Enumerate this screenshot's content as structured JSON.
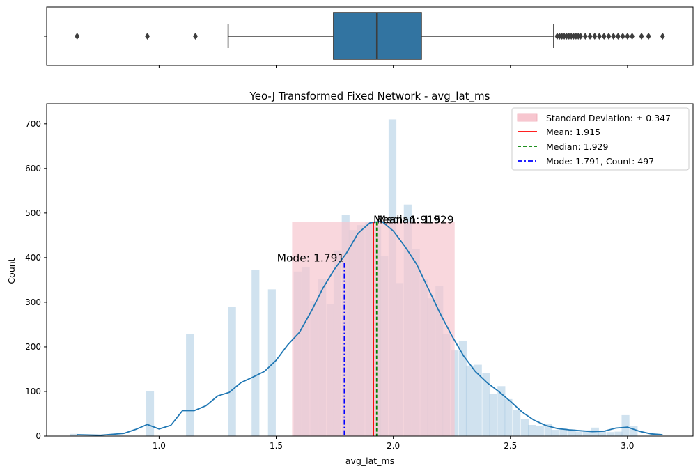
{
  "chart_data": [
    {
      "type": "box",
      "orientation": "horizontal",
      "box": {
        "q1": 1.745,
        "median": 1.929,
        "q3": 2.12,
        "whisker_low": 1.295,
        "whisker_high": 2.685
      },
      "outliers": [
        0.65,
        0.95,
        1.155,
        2.7,
        2.71,
        2.72,
        2.73,
        2.74,
        2.75,
        2.76,
        2.77,
        2.78,
        2.79,
        2.8,
        2.82,
        2.84,
        2.86,
        2.88,
        2.9,
        2.92,
        2.94,
        2.96,
        2.98,
        3.0,
        3.02,
        3.06,
        3.09,
        3.15
      ],
      "xlim": [
        0.52,
        3.28
      ],
      "x_ticks": [
        1.0,
        1.5,
        2.0,
        2.5,
        3.0
      ],
      "y_tick_labels": [
        ""
      ]
    },
    {
      "type": "bar",
      "title": "Yeo-J Transformed Fixed Network - avg_lat_ms",
      "xlabel": "avg_lat_ms",
      "ylabel": "Count",
      "xlim": [
        0.52,
        3.28
      ],
      "ylim": [
        0,
        745
      ],
      "x_ticks": [
        1.0,
        1.5,
        2.0,
        2.5,
        3.0
      ],
      "x_tick_labels": [
        "1.0",
        "1.5",
        "2.0",
        "2.5",
        "3.0"
      ],
      "y_ticks": [
        0,
        100,
        200,
        300,
        400,
        500,
        600,
        700
      ],
      "y_tick_labels": [
        "0",
        "100",
        "200",
        "300",
        "400",
        "500",
        "600",
        "700"
      ],
      "bin_width": 0.0333,
      "bins_left": [
        0.62,
        0.945,
        1.115,
        1.295,
        1.395,
        1.465,
        1.575,
        1.61,
        1.645,
        1.68,
        1.715,
        1.745,
        1.78,
        1.81,
        1.845,
        1.88,
        1.915,
        1.945,
        1.98,
        2.01,
        2.045,
        2.08,
        2.115,
        2.145,
        2.18,
        2.21,
        2.245,
        2.28,
        2.31,
        2.345,
        2.38,
        2.41,
        2.445,
        2.475,
        2.51,
        2.545,
        2.575,
        2.61,
        2.645,
        2.675,
        2.71,
        2.745,
        2.775,
        2.81,
        2.845,
        2.875,
        2.91,
        2.945,
        2.975,
        3.01
      ],
      "counts": [
        5,
        100,
        228,
        290,
        372,
        329,
        369,
        378,
        303,
        353,
        296,
        416,
        496,
        462,
        473,
        479,
        470,
        403,
        710,
        343,
        519,
        420,
        351,
        309,
        337,
        228,
        192,
        214,
        158,
        160,
        142,
        94,
        112,
        83,
        58,
        38,
        25,
        22,
        28,
        14,
        18,
        15,
        10,
        13,
        19,
        12,
        9,
        10,
        47,
        22
      ],
      "kde": {
        "x": [
          0.65,
          0.75,
          0.85,
          0.9,
          0.95,
          1.0,
          1.05,
          1.1,
          1.15,
          1.2,
          1.25,
          1.3,
          1.35,
          1.4,
          1.45,
          1.5,
          1.55,
          1.6,
          1.65,
          1.7,
          1.75,
          1.8,
          1.85,
          1.9,
          1.95,
          2.0,
          2.05,
          2.1,
          2.15,
          2.2,
          2.25,
          2.3,
          2.35,
          2.4,
          2.45,
          2.5,
          2.55,
          2.6,
          2.65,
          2.7,
          2.75,
          2.8,
          2.85,
          2.9,
          2.95,
          3.0,
          3.05,
          3.1,
          3.15
        ],
        "y": [
          3,
          2,
          6,
          15,
          26,
          16,
          24,
          57,
          57,
          68,
          90,
          98,
          120,
          132,
          145,
          170,
          205,
          233,
          280,
          332,
          375,
          410,
          455,
          478,
          482,
          460,
          425,
          385,
          330,
          275,
          225,
          180,
          145,
          120,
          100,
          78,
          54,
          36,
          24,
          17,
          14,
          12,
          10,
          11,
          18,
          20,
          11,
          5,
          3
        ]
      },
      "std_band": {
        "low": 1.568,
        "high": 2.262
      },
      "std_mean_height": 480,
      "mean": 1.915,
      "median": 1.929,
      "mode": 1.791,
      "mode_height": 388,
      "annotations": {
        "mean_text": "Mean: 1.915",
        "median_text": "Median: 1.929",
        "mode_text": "Mode: 1.791"
      },
      "legend": {
        "placement": "top-right",
        "entries": [
          {
            "label": "Standard Deviation: ± 0.347",
            "kind": "patch"
          },
          {
            "label": "Mean: 1.915",
            "kind": "solid"
          },
          {
            "label": "Median: 1.929",
            "kind": "dashed"
          },
          {
            "label": "Mode: 1.791, Count: 497",
            "kind": "dashdot"
          }
        ]
      },
      "colors": {
        "hist": "#a9cbe2",
        "kde": "#1f77b4",
        "std_fill": "#f7c6cf",
        "mean": "#ff0000",
        "median": "#008000",
        "mode": "#0000ff",
        "box": "#3274a1"
      }
    }
  ]
}
